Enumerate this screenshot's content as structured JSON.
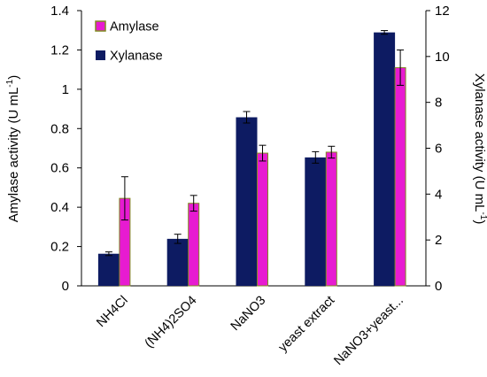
{
  "chart_data": {
    "type": "bar",
    "categories": [
      "NH4Cl",
      "(NH4)2SO4",
      "NaNO3",
      "yeast extract",
      "NaNO3+yeast..."
    ],
    "series": [
      {
        "name": "Xylanase",
        "axis": "right",
        "color": "#0D1B62",
        "values": [
          1.4,
          2.05,
          7.35,
          5.6,
          11.05
        ],
        "errors": [
          0.08,
          0.2,
          0.25,
          0.25,
          0.08
        ]
      },
      {
        "name": "Amylase",
        "axis": "left",
        "color": "#E71BD1",
        "border": "#7F8C1E",
        "values": [
          0.445,
          0.42,
          0.675,
          0.68,
          1.11
        ],
        "errors": [
          0.11,
          0.04,
          0.04,
          0.03,
          0.09
        ]
      }
    ],
    "ylabel_left": "Amylase activity (U mL",
    "ylabel_left_sup": "-1",
    "ylabel_left_end": ")",
    "ylabel_right": "Xylanase activity (U mL",
    "ylabel_right_sup": "-1",
    "ylabel_right_end": ")",
    "ylim_left": [
      0,
      1.4
    ],
    "ylim_right": [
      0,
      12
    ],
    "yticks_left": [
      "0",
      "0.2",
      "0.4",
      "0.6",
      "0.8",
      "1",
      "1.2",
      "1.4"
    ],
    "yticks_right": [
      "0",
      "2",
      "4",
      "6",
      "8",
      "10",
      "12"
    ],
    "grid": false,
    "legend_position": "top-left",
    "legend_order": [
      "Amylase",
      "Xylanase"
    ]
  }
}
